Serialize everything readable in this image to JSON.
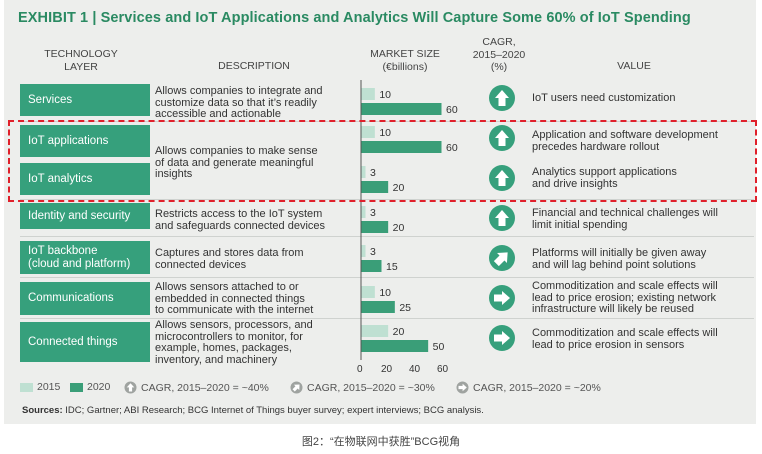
{
  "title": "EXHIBIT 1 | Services and IoT Applications and Analytics Will Capture Some 60% of IoT Spending",
  "headers": {
    "tech": [
      "TECHNOLOGY",
      "LAYER"
    ],
    "desc": "DESCRIPTION",
    "market": [
      "MARKET SIZE",
      "(€billions)"
    ],
    "cagr": [
      "CAGR,",
      "2015–2020",
      "(%)"
    ],
    "value": "VALUE"
  },
  "rows": [
    {
      "layer": "Services",
      "description": [
        "Allows companies to integrate and",
        "customize data so that it’s readily",
        "accessible and actionable"
      ],
      "value": [
        "IoT users need customization"
      ],
      "icon": "arrow-up-icon"
    },
    {
      "layer": "IoT applications",
      "description": [],
      "value": [
        "Application and software development",
        "precedes hardware rollout"
      ],
      "icon": "arrow-up-icon"
    },
    {
      "layer": "IoT analytics",
      "description": [],
      "value": [
        "Analytics support applications",
        "and drive insights"
      ],
      "icon": "arrow-up-icon"
    },
    {
      "layer": "Identity and security",
      "description": [
        "Restricts access to the IoT system",
        "and safeguards connected devices"
      ],
      "value": [
        "Financial and technical challenges will",
        "limit initial spending"
      ],
      "icon": "arrow-up-icon"
    },
    {
      "layer": "IoT backbone\n(cloud and platform)",
      "description": [
        "Captures and stores data from",
        "connected devices"
      ],
      "value": [
        "Platforms will initially be given away",
        "and will lag behind point solutions"
      ],
      "icon": "arrow-up-right-icon"
    },
    {
      "layer": "Communications",
      "description": [
        "Allows sensors attached to or",
        "embedded in connected things",
        "to communicate with the internet"
      ],
      "value": [
        "Commoditization and scale effects will",
        "lead to price erosion; existing network",
        "infrastructure will likely be reused"
      ],
      "icon": "arrow-right-icon"
    },
    {
      "layer": "Connected things",
      "description": [
        "Allows sensors, processors, and",
        "microcontrollers to monitor, for",
        "example, homes, packages,",
        "inventory, and machinery"
      ],
      "value": [
        "Commoditization and scale effects will",
        "lead to price erosion in sensors"
      ],
      "icon": "arrow-right-icon"
    }
  ],
  "shared_description": [
    "Allows companies to make sense",
    "of data and generate meaningful",
    "insights"
  ],
  "chart_data": {
    "type": "bar",
    "orientation": "horizontal",
    "categories": [
      "Services",
      "IoT applications",
      "IoT analytics",
      "Identity and security",
      "IoT backbone (cloud and platform)",
      "Communications",
      "Connected things"
    ],
    "series": [
      {
        "name": "2015",
        "values": [
          10,
          10,
          3,
          3,
          3,
          10,
          20
        ],
        "color": "#bfe0d2"
      },
      {
        "name": "2020",
        "values": [
          60,
          60,
          20,
          20,
          15,
          25,
          50
        ],
        "color": "#3a9e78"
      }
    ],
    "xlim": [
      0,
      60
    ],
    "xticks": [
      "0",
      "20",
      "40",
      "60"
    ],
    "xlabel": "MARKET SIZE (€billions)",
    "legend_placement": "bottom-left"
  },
  "legend": {
    "y2015": "2015",
    "y2020": "2020",
    "cagr40": "CAGR, 2015–2020 = ~40%",
    "cagr30": "CAGR, 2015–2020 = ~30%",
    "cagr20": "CAGR, 2015–2020 = ~20%"
  },
  "sources": {
    "label": "Sources:",
    "text": " IDC; Gartner; ABI Research; BCG Internet of Things buyer survey; expert interviews; BCG analysis."
  },
  "caption": "图2：“在物联网中获胜”BCG视角",
  "colors": {
    "accent": "#2a8a62",
    "layer_bg": "#36a07c",
    "bar2015": "#bfe0d2",
    "bar2020": "#3a9e78",
    "highlight": "#e0202b",
    "panel": "#edeeec"
  }
}
